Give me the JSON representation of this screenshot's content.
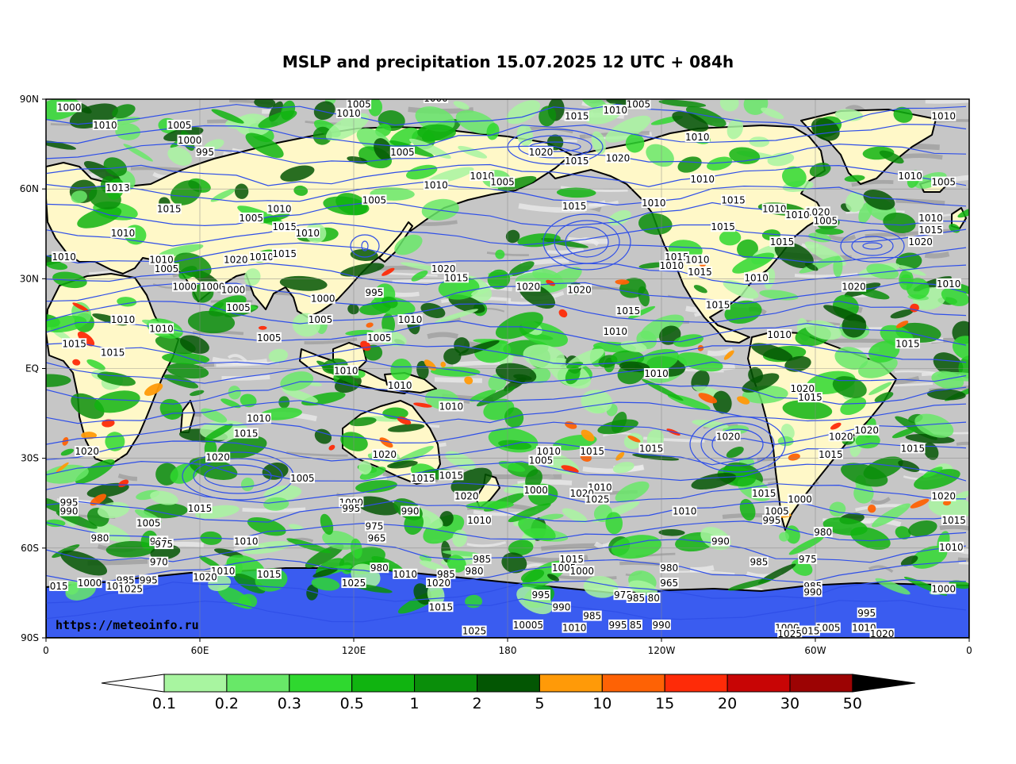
{
  "title": "MSLP and precipitation 15.07.2025 12 UTC + 084h",
  "credit": "https://meteoinfo.ru",
  "map": {
    "lat_ticks": [
      {
        "label": "90N",
        "lat": 90
      },
      {
        "label": "60N",
        "lat": 60
      },
      {
        "label": "30N",
        "lat": 30
      },
      {
        "label": "EQ",
        "lat": 0
      },
      {
        "label": "30S",
        "lat": -30
      },
      {
        "label": "60S",
        "lat": -60
      },
      {
        "label": "90S",
        "lat": -90
      }
    ],
    "lon_ticks": [
      {
        "label": "0",
        "lon": 0
      },
      {
        "label": "60E",
        "lon": 60
      },
      {
        "label": "120E",
        "lon": 120
      },
      {
        "label": "180",
        "lon": 180
      },
      {
        "label": "120W",
        "lon": 240
      },
      {
        "label": "60W",
        "lon": 300
      },
      {
        "label": "0",
        "lon": 360
      }
    ],
    "isobar_labels": [
      {
        "text": "1000",
        "lon": 9,
        "lat": 87
      },
      {
        "text": "1005",
        "lon": 122,
        "lat": 88
      },
      {
        "text": "1000",
        "lon": 152,
        "lat": 90
      },
      {
        "text": "1010",
        "lon": 118,
        "lat": 85
      },
      {
        "text": "1005",
        "lon": 231,
        "lat": 88
      },
      {
        "text": "1010",
        "lon": 222,
        "lat": 86
      },
      {
        "text": "1015",
        "lon": 207,
        "lat": 84
      },
      {
        "text": "1010",
        "lon": 350,
        "lat": 84
      },
      {
        "text": "1010",
        "lon": 23,
        "lat": 81
      },
      {
        "text": "1005",
        "lon": 52,
        "lat": 81
      },
      {
        "text": "1000",
        "lon": 56,
        "lat": 76
      },
      {
        "text": "995",
        "lon": 62,
        "lat": 72
      },
      {
        "text": "1005",
        "lon": 139,
        "lat": 72
      },
      {
        "text": "1020",
        "lon": 193,
        "lat": 72
      },
      {
        "text": "1015",
        "lon": 207,
        "lat": 69
      },
      {
        "text": "1020",
        "lon": 223,
        "lat": 70
      },
      {
        "text": "1010",
        "lon": 254,
        "lat": 77
      },
      {
        "text": "1010",
        "lon": 256,
        "lat": 63
      },
      {
        "text": "1013",
        "lon": 28,
        "lat": 60
      },
      {
        "text": "1010",
        "lon": 152,
        "lat": 61
      },
      {
        "text": "1010",
        "lon": 170,
        "lat": 64
      },
      {
        "text": "1005",
        "lon": 178,
        "lat": 62
      },
      {
        "text": "1010",
        "lon": 337,
        "lat": 64
      },
      {
        "text": "1005",
        "lon": 350,
        "lat": 62
      },
      {
        "text": "1005",
        "lon": 128,
        "lat": 56
      },
      {
        "text": "1015",
        "lon": 206,
        "lat": 54
      },
      {
        "text": "1010",
        "lon": 237,
        "lat": 55
      },
      {
        "text": "1015",
        "lon": 268,
        "lat": 56
      },
      {
        "text": "1010",
        "lon": 284,
        "lat": 53
      },
      {
        "text": "1020",
        "lon": 301,
        "lat": 52
      },
      {
        "text": "1005",
        "lon": 304,
        "lat": 49
      },
      {
        "text": "1015",
        "lon": 48,
        "lat": 53
      },
      {
        "text": "1005",
        "lon": 80,
        "lat": 50
      },
      {
        "text": "1010",
        "lon": 91,
        "lat": 53
      },
      {
        "text": "1015",
        "lon": 93,
        "lat": 47
      },
      {
        "text": "1010",
        "lon": 102,
        "lat": 45
      },
      {
        "text": "1010",
        "lon": 293,
        "lat": 51
      },
      {
        "text": "1015",
        "lon": 264,
        "lat": 47
      },
      {
        "text": "1015",
        "lon": 287,
        "lat": 42
      },
      {
        "text": "1010",
        "lon": 345,
        "lat": 50
      },
      {
        "text": "1015",
        "lon": 345,
        "lat": 46
      },
      {
        "text": "1020",
        "lon": 341,
        "lat": 42
      },
      {
        "text": "1010",
        "lon": 30,
        "lat": 45
      },
      {
        "text": "1010",
        "lon": 7,
        "lat": 37
      },
      {
        "text": "1010",
        "lon": 45,
        "lat": 36
      },
      {
        "text": "1005",
        "lon": 47,
        "lat": 33
      },
      {
        "text": "1020",
        "lon": 74,
        "lat": 36
      },
      {
        "text": "1010",
        "lon": 84,
        "lat": 37
      },
      {
        "text": "1015",
        "lon": 93,
        "lat": 38
      },
      {
        "text": "1015",
        "lon": 246,
        "lat": 37
      },
      {
        "text": "1010",
        "lon": 254,
        "lat": 36
      },
      {
        "text": "1010",
        "lon": 244,
        "lat": 34
      },
      {
        "text": "1015",
        "lon": 255,
        "lat": 32
      },
      {
        "text": "1010",
        "lon": 277,
        "lat": 30
      },
      {
        "text": "1020",
        "lon": 155,
        "lat": 33
      },
      {
        "text": "1015",
        "lon": 160,
        "lat": 30
      },
      {
        "text": "1020",
        "lon": 188,
        "lat": 27
      },
      {
        "text": "1020",
        "lon": 208,
        "lat": 26
      },
      {
        "text": "1020",
        "lon": 315,
        "lat": 27
      },
      {
        "text": "1010",
        "lon": 352,
        "lat": 28
      },
      {
        "text": "1000",
        "lon": 54,
        "lat": 27
      },
      {
        "text": "1000",
        "lon": 65,
        "lat": 27
      },
      {
        "text": "1000",
        "lon": 73,
        "lat": 26
      },
      {
        "text": "1005",
        "lon": 75,
        "lat": 20
      },
      {
        "text": "1000",
        "lon": 108,
        "lat": 23
      },
      {
        "text": "995",
        "lon": 128,
        "lat": 25
      },
      {
        "text": "1005",
        "lon": 107,
        "lat": 16
      },
      {
        "text": "1010",
        "lon": 142,
        "lat": 16
      },
      {
        "text": "1015",
        "lon": 227,
        "lat": 19
      },
      {
        "text": "1015",
        "lon": 262,
        "lat": 21
      },
      {
        "text": "1010",
        "lon": 30,
        "lat": 16
      },
      {
        "text": "1010",
        "lon": 45,
        "lat": 13
      },
      {
        "text": "1010",
        "lon": 222,
        "lat": 12
      },
      {
        "text": "1010",
        "lon": 286,
        "lat": 11
      },
      {
        "text": "1015",
        "lon": 11,
        "lat": 8
      },
      {
        "text": "1015",
        "lon": 26,
        "lat": 5
      },
      {
        "text": "1005",
        "lon": 87,
        "lat": 10
      },
      {
        "text": "1005",
        "lon": 130,
        "lat": 10
      },
      {
        "text": "1015",
        "lon": 336,
        "lat": 8
      },
      {
        "text": "1010",
        "lon": 117,
        "lat": -1
      },
      {
        "text": "1010",
        "lon": 238,
        "lat": -2
      },
      {
        "text": "1010",
        "lon": 138,
        "lat": -6
      },
      {
        "text": "1020",
        "lon": 295,
        "lat": -7
      },
      {
        "text": "1015",
        "lon": 298,
        "lat": -10
      },
      {
        "text": "1010",
        "lon": 158,
        "lat": -13
      },
      {
        "text": "1010",
        "lon": 83,
        "lat": -17
      },
      {
        "text": "1015",
        "lon": 78,
        "lat": -22
      },
      {
        "text": "1020",
        "lon": 266,
        "lat": -23
      },
      {
        "text": "1020",
        "lon": 310,
        "lat": -23
      },
      {
        "text": "1020",
        "lon": 320,
        "lat": -21
      },
      {
        "text": "1020",
        "lon": 16,
        "lat": -28
      },
      {
        "text": "1020",
        "lon": 67,
        "lat": -30
      },
      {
        "text": "1020",
        "lon": 132,
        "lat": -29
      },
      {
        "text": "1010",
        "lon": 196,
        "lat": -28
      },
      {
        "text": "1005",
        "lon": 193,
        "lat": -31
      },
      {
        "text": "1015",
        "lon": 213,
        "lat": -28
      },
      {
        "text": "1015",
        "lon": 236,
        "lat": -27
      },
      {
        "text": "1015",
        "lon": 306,
        "lat": -29
      },
      {
        "text": "1015",
        "lon": 338,
        "lat": -27
      },
      {
        "text": "1005",
        "lon": 100,
        "lat": -37
      },
      {
        "text": "1015",
        "lon": 147,
        "lat": -37
      },
      {
        "text": "1015",
        "lon": 158,
        "lat": -36
      },
      {
        "text": "1000",
        "lon": 191,
        "lat": -41
      },
      {
        "text": "1010",
        "lon": 216,
        "lat": -40
      },
      {
        "text": "1020",
        "lon": 209,
        "lat": -42
      },
      {
        "text": "1025",
        "lon": 215,
        "lat": -44
      },
      {
        "text": "1020",
        "lon": 164,
        "lat": -43
      },
      {
        "text": "1015",
        "lon": 280,
        "lat": -42
      },
      {
        "text": "1000",
        "lon": 294,
        "lat": -44
      },
      {
        "text": "1020",
        "lon": 350,
        "lat": -43
      },
      {
        "text": "995",
        "lon": 9,
        "lat": -45
      },
      {
        "text": "990",
        "lon": 9,
        "lat": -48
      },
      {
        "text": "1015",
        "lon": 60,
        "lat": -47
      },
      {
        "text": "1000",
        "lon": 119,
        "lat": -45
      },
      {
        "text": "995",
        "lon": 119,
        "lat": -47
      },
      {
        "text": "990",
        "lon": 142,
        "lat": -48
      },
      {
        "text": "1010",
        "lon": 169,
        "lat": -51
      },
      {
        "text": "1010",
        "lon": 249,
        "lat": -48
      },
      {
        "text": "1005",
        "lon": 285,
        "lat": -48
      },
      {
        "text": "995",
        "lon": 283,
        "lat": -51
      },
      {
        "text": "1015",
        "lon": 354,
        "lat": -51
      },
      {
        "text": "1005",
        "lon": 40,
        "lat": -52
      },
      {
        "text": "975",
        "lon": 128,
        "lat": -53
      },
      {
        "text": "965",
        "lon": 129,
        "lat": -57
      },
      {
        "text": "980",
        "lon": 303,
        "lat": -55
      },
      {
        "text": "980",
        "lon": 21,
        "lat": -57
      },
      {
        "text": "980",
        "lon": 44,
        "lat": -58
      },
      {
        "text": "975",
        "lon": 46,
        "lat": -59
      },
      {
        "text": "1010",
        "lon": 78,
        "lat": -58
      },
      {
        "text": "990",
        "lon": 263,
        "lat": -58
      },
      {
        "text": "1010",
        "lon": 353,
        "lat": -60
      },
      {
        "text": "985",
        "lon": 170,
        "lat": -64
      },
      {
        "text": "975",
        "lon": 297,
        "lat": -64
      },
      {
        "text": "970",
        "lon": 44,
        "lat": -65
      },
      {
        "text": "1015",
        "lon": 205,
        "lat": -64
      },
      {
        "text": "1005",
        "lon": 202,
        "lat": -67
      },
      {
        "text": "1000",
        "lon": 209,
        "lat": -68
      },
      {
        "text": "985",
        "lon": 278,
        "lat": -65
      },
      {
        "text": "980",
        "lon": 167,
        "lat": -68
      },
      {
        "text": "980",
        "lon": 243,
        "lat": -67
      },
      {
        "text": "1010",
        "lon": 69,
        "lat": -68
      },
      {
        "text": "1015",
        "lon": 87,
        "lat": -69
      },
      {
        "text": "1020",
        "lon": 62,
        "lat": -70
      },
      {
        "text": "980",
        "lon": 130,
        "lat": -67
      },
      {
        "text": "1010",
        "lon": 140,
        "lat": -69
      },
      {
        "text": "985",
        "lon": 156,
        "lat": -69
      },
      {
        "text": "995",
        "lon": 40,
        "lat": -71
      },
      {
        "text": "985",
        "lon": 31,
        "lat": -71
      },
      {
        "text": "1025",
        "lon": 120,
        "lat": -72
      },
      {
        "text": "1020",
        "lon": 153,
        "lat": -72
      },
      {
        "text": "965",
        "lon": 243,
        "lat": -72
      },
      {
        "text": "015",
        "lon": 5,
        "lat": -73
      },
      {
        "text": "1000",
        "lon": 17,
        "lat": -72
      },
      {
        "text": "101",
        "lon": 27,
        "lat": -73
      },
      {
        "text": "1025",
        "lon": 33,
        "lat": -74
      },
      {
        "text": "985",
        "lon": 299,
        "lat": -73
      },
      {
        "text": "990",
        "lon": 299,
        "lat": -75
      },
      {
        "text": "1000",
        "lon": 350,
        "lat": -74
      },
      {
        "text": "995",
        "lon": 193,
        "lat": -76
      },
      {
        "text": "975",
        "lon": 225,
        "lat": -76
      },
      {
        "text": "985",
        "lon": 230,
        "lat": -77
      },
      {
        "text": "80",
        "lon": 237,
        "lat": -77
      },
      {
        "text": "990",
        "lon": 201,
        "lat": -80
      },
      {
        "text": "1015",
        "lon": 154,
        "lat": -80
      },
      {
        "text": "995",
        "lon": 320,
        "lat": -82
      },
      {
        "text": "985",
        "lon": 213,
        "lat": -83
      },
      {
        "text": "10005",
        "lon": 188,
        "lat": -86
      },
      {
        "text": "1010",
        "lon": 206,
        "lat": -87
      },
      {
        "text": "995",
        "lon": 223,
        "lat": -86
      },
      {
        "text": "85",
        "lon": 230,
        "lat": -86
      },
      {
        "text": "990",
        "lon": 240,
        "lat": -86
      },
      {
        "text": "1000",
        "lon": 289,
        "lat": -87
      },
      {
        "text": "1005",
        "lon": 305,
        "lat": -87
      },
      {
        "text": "1010",
        "lon": 319,
        "lat": -87
      },
      {
        "text": "1015",
        "lon": 297,
        "lat": -88
      },
      {
        "text": "1025",
        "lon": 167,
        "lat": -88
      },
      {
        "text": "1020",
        "lon": 326,
        "lat": -89
      },
      {
        "text": "1025",
        "lon": 290,
        "lat": -89
      }
    ]
  },
  "legend": {
    "labels": [
      "0.1",
      "0.2",
      "0.3",
      "0.5",
      "1",
      "2",
      "5",
      "10",
      "15",
      "20",
      "30",
      "50"
    ],
    "colors": [
      "#a8f5a0",
      "#68e868",
      "#2fd82f",
      "#10b410",
      "#0a8e0a",
      "#035603",
      "#ff9a08",
      "#fe6205",
      "#fe2b08",
      "#c80505",
      "#9c0303"
    ],
    "under_color": "#ffffff",
    "over_color": "#000000"
  },
  "colors": {
    "isobar": "#2f4fe8",
    "coast": "#000000",
    "grid": "#888888",
    "ocean_base": "#c6c6c6",
    "land_base": "#fff8c8"
  }
}
